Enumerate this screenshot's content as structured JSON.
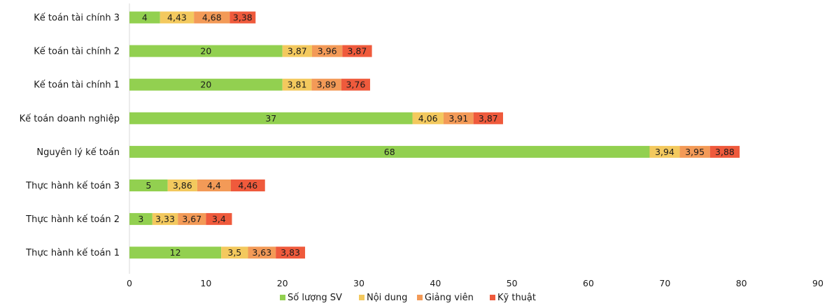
{
  "colors": {
    "so_luong": "#92D050",
    "noi_dung": "#F3C95E",
    "giang_vien": "#F39A57",
    "ky_thuat": "#EF5A3C"
  },
  "chart_data": {
    "type": "bar",
    "orientation": "horizontal",
    "stacked": true,
    "title": "",
    "xlabel": "",
    "ylabel": "",
    "xlim": [
      0,
      90
    ],
    "xticks": [
      0,
      10,
      20,
      30,
      40,
      50,
      60,
      70,
      80,
      90
    ],
    "grid": false,
    "legend_position": "bottom",
    "categories": [
      "Kế toán tài chính 3",
      "Kế toán tài chính 2",
      "Kế toán tài chính 1",
      "Kế toán doanh nghiệp",
      "Nguyên lý kế toán",
      "Thực hành kế toán 3",
      "Thực hành kế toán 2",
      "Thực hành kế toán 1"
    ],
    "series": [
      {
        "name": "Số lượng SV",
        "color_key": "so_luong",
        "values": [
          4,
          20,
          20,
          37,
          68,
          5,
          3,
          12
        ],
        "labels": [
          "4",
          "20",
          "20",
          "37",
          "68",
          "5",
          "3",
          "12"
        ]
      },
      {
        "name": "Nội dung",
        "color_key": "noi_dung",
        "values": [
          4.43,
          3.87,
          3.81,
          4.06,
          3.94,
          3.86,
          3.33,
          3.5
        ],
        "labels": [
          "4,43",
          "3,87",
          "3,81",
          "4,06",
          "3,94",
          "3,86",
          "3,33",
          "3,5"
        ]
      },
      {
        "name": "Giảng viên",
        "color_key": "giang_vien",
        "values": [
          4.68,
          3.96,
          3.89,
          3.91,
          3.95,
          4.4,
          3.67,
          3.63
        ],
        "labels": [
          "4,68",
          "3,96",
          "3,89",
          "3,91",
          "3,95",
          "4,4",
          "3,67",
          "3,63"
        ]
      },
      {
        "name": "Kỹ thuật",
        "color_key": "ky_thuat",
        "values": [
          3.38,
          3.87,
          3.76,
          3.87,
          3.88,
          4.46,
          3.4,
          3.83
        ],
        "labels": [
          "3,38",
          "3,87",
          "3,76",
          "3,87",
          "3,88",
          "4,46",
          "3,4",
          "3,83"
        ]
      }
    ]
  }
}
